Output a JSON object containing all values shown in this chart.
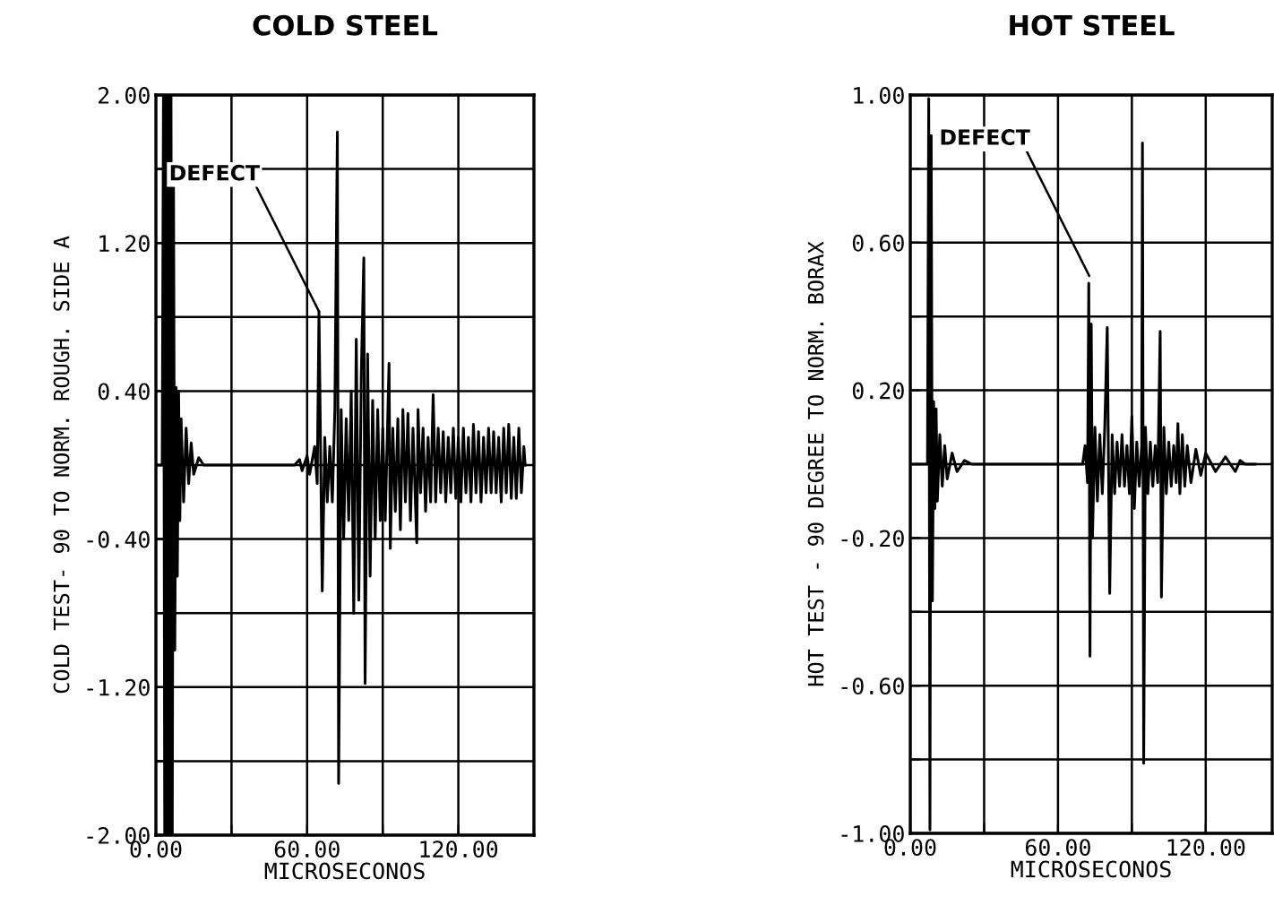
{
  "chart_data": [
    {
      "type": "line",
      "title": "COLD STEEL",
      "xlabel": "MICROSECONOS",
      "ylabel": "COLD TEST- 90 TO NORM. ROUGH. SIDE A",
      "xlim": [
        0,
        150
      ],
      "ylim": [
        -2.0,
        2.0
      ],
      "grid": true,
      "xticks": [
        {
          "value": 0,
          "label": "0.00"
        },
        {
          "value": 30,
          "label": null
        },
        {
          "value": 60,
          "label": "60.00"
        },
        {
          "value": 90,
          "label": null
        },
        {
          "value": 120,
          "label": "120.00"
        },
        {
          "value": 150,
          "label": null
        }
      ],
      "yticks": [
        {
          "value": -2.0,
          "label": "-2.00"
        },
        {
          "value": -1.6,
          "label": null
        },
        {
          "value": -1.2,
          "label": "-1.20"
        },
        {
          "value": -0.8,
          "label": null
        },
        {
          "value": -0.4,
          "label": "-0.40"
        },
        {
          "value": 0,
          "label": null
        },
        {
          "value": 0.4,
          "label": "0.40"
        },
        {
          "value": 0.8,
          "label": null
        },
        {
          "value": 1.2,
          "label": "1.20"
        },
        {
          "value": 1.6,
          "label": null
        },
        {
          "value": 2.0,
          "label": "2.00"
        }
      ],
      "annotations": [
        {
          "text": "DEFECT",
          "x": 64.7,
          "y": 0.83
        }
      ],
      "series": [
        {
          "color": "#000000",
          "x": [
            0,
            2.5,
            3,
            3.5,
            4,
            4.5,
            5,
            5.5,
            6,
            6.5,
            7,
            7.5,
            8,
            8.5,
            9,
            9.5,
            10,
            11,
            12,
            13,
            14,
            15,
            17,
            19,
            55,
            57,
            58,
            60,
            61,
            63,
            64,
            64.7,
            66,
            67,
            68,
            69,
            70,
            71,
            72,
            72.5,
            73.5,
            74.5,
            75.5,
            76.5,
            77.5,
            78.5,
            79.5,
            80.5,
            81.5,
            82.5,
            83,
            84,
            85,
            86,
            87,
            88,
            89,
            90,
            91,
            92.5,
            93,
            94,
            95,
            96,
            97,
            98,
            99,
            100,
            101,
            102,
            103.5,
            104,
            105,
            106,
            107,
            108,
            109,
            110,
            111,
            112,
            113,
            114,
            115,
            116,
            117,
            118,
            119,
            120,
            121,
            122,
            123,
            124,
            125,
            126,
            127,
            128,
            129,
            130,
            131,
            132,
            133,
            134,
            135,
            136,
            137,
            138,
            139,
            140,
            141,
            142,
            143,
            144,
            145,
            146,
            146.5
          ],
          "values": [
            0,
            0,
            1.99,
            -1.99,
            1.99,
            -1.99,
            1.99,
            -1.99,
            1.99,
            -1.99,
            1.5,
            -1.0,
            0.42,
            -0.6,
            0.4,
            -0.3,
            0.25,
            -0.2,
            0.2,
            -0.1,
            0.12,
            -0.05,
            0.04,
            0,
            0,
            0.03,
            -0.03,
            0.05,
            -0.05,
            0.1,
            -0.1,
            0.83,
            -0.68,
            0.15,
            -0.2,
            0.1,
            -0.2,
            0.3,
            1.8,
            -1.72,
            0.3,
            -0.4,
            0.25,
            -0.3,
            0.4,
            -0.8,
            0.68,
            -0.73,
            0.5,
            1.12,
            -1.18,
            0.6,
            -0.6,
            0.35,
            -0.4,
            0.3,
            -0.3,
            0.2,
            -0.3,
            0.55,
            -0.45,
            0.2,
            -0.25,
            0.25,
            -0.35,
            0.3,
            -0.2,
            0.28,
            -0.3,
            0.2,
            -0.42,
            0.3,
            -0.15,
            0.2,
            -0.25,
            0.15,
            -0.2,
            0.38,
            -0.2,
            0.2,
            -0.15,
            0.18,
            -0.2,
            0.15,
            -0.15,
            0.2,
            -0.18,
            0.15,
            -0.2,
            0.2,
            -0.15,
            0.15,
            -0.2,
            0.22,
            -0.15,
            0.18,
            -0.2,
            0.15,
            -0.15,
            0.2,
            -0.15,
            0.18,
            -0.15,
            0.15,
            -0.2,
            0.2,
            -0.15,
            0.22,
            -0.18,
            0.15,
            -0.18,
            0.2,
            -0.15,
            0.1,
            0
          ]
        }
      ]
    },
    {
      "type": "line",
      "title": "HOT STEEL",
      "xlabel": "MICROSECONOS",
      "ylabel": "HOT TEST - 90 DEGREE TO NORM. BORAX",
      "xlim": [
        0,
        147
      ],
      "ylim": [
        -1.0,
        1.0
      ],
      "grid": true,
      "xticks": [
        {
          "value": 0,
          "label": "0.00"
        },
        {
          "value": 30,
          "label": null
        },
        {
          "value": 60,
          "label": "60.00"
        },
        {
          "value": 90,
          "label": null
        },
        {
          "value": 120,
          "label": "120.00"
        }
      ],
      "yticks": [
        {
          "value": -1.0,
          "label": "-1.00"
        },
        {
          "value": -0.8,
          "label": null
        },
        {
          "value": -0.6,
          "label": "-0.60"
        },
        {
          "value": -0.4,
          "label": null
        },
        {
          "value": -0.2,
          "label": "-0.20"
        },
        {
          "value": 0,
          "label": null
        },
        {
          "value": 0.2,
          "label": "0.20"
        },
        {
          "value": 0.4,
          "label": null
        },
        {
          "value": 0.6,
          "label": "0.60"
        },
        {
          "value": 0.8,
          "label": null
        },
        {
          "value": 1.0,
          "label": "1.00"
        }
      ],
      "annotations": [
        {
          "text": "DEFECT",
          "x": 72.7,
          "y": 0.51
        }
      ],
      "series": [
        {
          "color": "#000000",
          "x": [
            0,
            7,
            7.5,
            8,
            8.5,
            9,
            9.5,
            10,
            10.5,
            11,
            12,
            13,
            14,
            15,
            17,
            19,
            22,
            25,
            70,
            71,
            72,
            72.5,
            73,
            73.5,
            74,
            75,
            76,
            77,
            78,
            79,
            80,
            81,
            82,
            83,
            84,
            85,
            86,
            87,
            88,
            89,
            90,
            91,
            92,
            93,
            94,
            94.3,
            94.8,
            95.5,
            96.5,
            97.5,
            98.5,
            99.5,
            100.5,
            101.5,
            102,
            103,
            104,
            105,
            106,
            107,
            108,
            108.7,
            109.5,
            110.5,
            111.5,
            112.5,
            114,
            116,
            118,
            120,
            124,
            128,
            132,
            134,
            136,
            140
          ],
          "values": [
            0,
            0,
            0.99,
            -0.99,
            0.89,
            -0.37,
            0.17,
            -0.12,
            0.15,
            -0.1,
            0.08,
            -0.06,
            0.05,
            -0.04,
            0.03,
            -0.02,
            0.01,
            0,
            0,
            0.05,
            -0.05,
            0.49,
            -0.52,
            0.38,
            -0.2,
            0.1,
            -0.1,
            0.08,
            -0.08,
            0.1,
            0.37,
            -0.35,
            0.08,
            -0.08,
            0.06,
            -0.06,
            0.08,
            -0.06,
            0.05,
            -0.08,
            0.13,
            -0.12,
            0.06,
            -0.06,
            0.05,
            0.87,
            -0.81,
            0.1,
            -0.08,
            0.06,
            -0.06,
            0.05,
            -0.05,
            0.36,
            -0.36,
            0.1,
            -0.08,
            0.06,
            -0.06,
            0.05,
            -0.05,
            0.11,
            -0.08,
            0.08,
            -0.06,
            0.05,
            -0.05,
            0.04,
            -0.03,
            0.03,
            -0.02,
            0.02,
            -0.02,
            0.01,
            0,
            0
          ]
        }
      ]
    }
  ]
}
